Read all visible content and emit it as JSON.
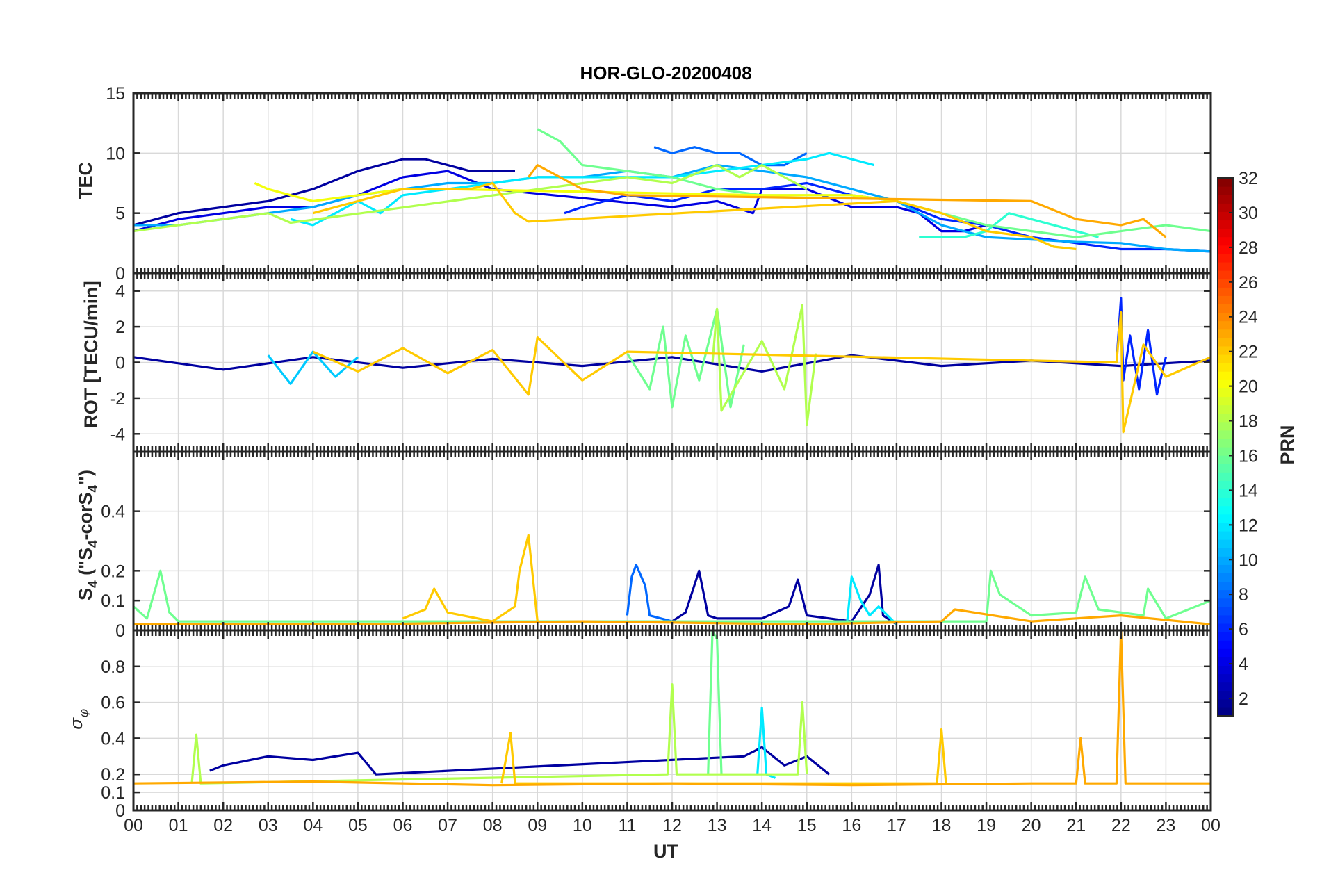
{
  "chart_data": {
    "type": "line",
    "title": "HOR-GLO-20200408",
    "xlabel": "UT",
    "x_ticks": [
      "00",
      "01",
      "02",
      "03",
      "04",
      "05",
      "06",
      "07",
      "08",
      "09",
      "10",
      "11",
      "12",
      "13",
      "14",
      "15",
      "16",
      "17",
      "18",
      "19",
      "20",
      "21",
      "22",
      "23",
      "00"
    ],
    "xlim": [
      0,
      24
    ],
    "grid": true,
    "panels": [
      {
        "id": "tec",
        "ylabel": "TEC",
        "ylim": [
          0,
          15
        ],
        "y_ticks": [
          0,
          5,
          10,
          15
        ],
        "series": [
          {
            "name": "PRN 2",
            "prn": 2,
            "x": [
              0,
              0.5,
              1,
              2,
              3,
              4,
              5,
              5.5,
              6,
              6.5,
              7,
              7.5,
              8,
              8.5
            ],
            "y": [
              4,
              4.5,
              5,
              5.5,
              6,
              7,
              8.5,
              9,
              9.5,
              9.5,
              9,
              8.5,
              8.5,
              8.5
            ]
          },
          {
            "name": "PRN 4",
            "prn": 4,
            "x": [
              0,
              1,
              2,
              3,
              4,
              5,
              6,
              7,
              8,
              12,
              13,
              13.8,
              14,
              15,
              16,
              17,
              17.5,
              18,
              18.5,
              19
            ],
            "y": [
              3.5,
              4.5,
              5,
              5.5,
              5.5,
              6.5,
              8,
              8.5,
              7,
              5.5,
              6,
              5,
              7,
              7,
              5.5,
              5.5,
              5,
              3.5,
              3.5,
              4
            ]
          },
          {
            "name": "PRN 6",
            "prn": 6,
            "x": [
              9.6,
              10,
              11,
              12,
              13,
              14,
              15,
              16,
              17,
              18,
              19,
              20,
              21,
              22,
              23,
              24
            ],
            "y": [
              5,
              5.5,
              6.5,
              6,
              7,
              7,
              7.5,
              6.5,
              6,
              4.5,
              4,
              3,
              2.5,
              2,
              2,
              1.8
            ]
          },
          {
            "name": "PRN 8",
            "prn": 8,
            "x": [
              11.6,
              12,
              12.5,
              13,
              13.5,
              14,
              14.5,
              15
            ],
            "y": [
              10.5,
              10,
              10.5,
              10,
              10,
              9,
              9,
              10
            ]
          },
          {
            "name": "PRN 10",
            "prn": 10,
            "x": [
              0,
              1,
              2,
              3,
              4,
              4.5,
              5,
              6,
              7,
              8,
              9,
              10,
              11,
              12,
              13,
              14,
              15,
              16,
              17,
              18,
              19,
              20,
              21,
              22,
              23,
              24
            ],
            "y": [
              4,
              4,
              4.5,
              5,
              5.5,
              6,
              6.5,
              7,
              7.5,
              7.5,
              8,
              8,
              8.5,
              8,
              9,
              8.5,
              8,
              7,
              6,
              4,
              3,
              2.8,
              2.6,
              2.5,
              2,
              1.8
            ]
          },
          {
            "name": "PRN 12",
            "prn": 12,
            "x": [
              3.5,
              4,
              4.5,
              5,
              5.5,
              6,
              7,
              8,
              9,
              11,
              12,
              13,
              14,
              15,
              15.5,
              16,
              16.5
            ],
            "y": [
              4.5,
              4,
              5,
              6,
              5,
              6.5,
              7,
              7.5,
              8,
              8,
              8,
              8.5,
              9,
              9.5,
              10,
              9.5,
              9
            ]
          },
          {
            "name": "PRN 14",
            "prn": 14,
            "x": [
              17.5,
              18,
              18.5,
              19,
              19.5,
              20,
              20.5,
              21,
              21.5
            ],
            "y": [
              3,
              3,
              3,
              3.5,
              5,
              4.5,
              4,
              3.5,
              3
            ]
          },
          {
            "name": "PRN 16",
            "prn": 16,
            "x": [
              9,
              9.5,
              10,
              11,
              12,
              12.5,
              13,
              14,
              15,
              16,
              17,
              18,
              19,
              20,
              21,
              22,
              23,
              24
            ],
            "y": [
              12,
              11,
              9,
              8.5,
              8,
              7.5,
              7,
              6.5,
              6.5,
              6.5,
              6,
              5,
              4,
              3.5,
              3,
              3.5,
              4,
              3.5
            ]
          },
          {
            "name": "PRN 18",
            "prn": 18,
            "x": [
              0,
              1,
              2,
              3,
              3.5,
              11,
              12,
              13,
              13.5,
              14,
              14.5,
              15
            ],
            "y": [
              3.5,
              4,
              4.5,
              5,
              4.2,
              8,
              7.5,
              9,
              8,
              9,
              8,
              7
            ]
          },
          {
            "name": "PRN 20",
            "prn": 20,
            "x": [
              2.7,
              3,
              4,
              5,
              6,
              7,
              14,
              15,
              15.5,
              16,
              17,
              17.5
            ],
            "y": [
              7.5,
              7,
              6,
              6.5,
              7,
              7,
              6.5,
              6.5,
              6.5,
              6.5,
              6,
              5.5
            ]
          },
          {
            "name": "PRN 22",
            "prn": 22,
            "x": [
              4,
              5,
              6,
              7,
              7.5,
              8,
              8.5,
              8.8,
              17,
              18,
              19,
              20,
              20.5,
              21
            ],
            "y": [
              5,
              6,
              7,
              7,
              7,
              7.5,
              5,
              4.3,
              6,
              5,
              3.5,
              3,
              2.2,
              2
            ]
          },
          {
            "name": "PRN 23",
            "prn": 23,
            "x": [
              8.8,
              9,
              10,
              11,
              20,
              21,
              22,
              22.5,
              23
            ],
            "y": [
              8,
              9,
              7,
              6.5,
              6,
              4.5,
              4,
              4.5,
              3
            ]
          }
        ]
      },
      {
        "id": "rot",
        "ylabel": "ROT [TECU/min]",
        "ylim": [
          -5,
          5
        ],
        "y_ticks": [
          -4,
          -2,
          0,
          2,
          4
        ],
        "series": [
          {
            "name": "PRN 2",
            "prn": 2,
            "x": [
              0,
              2,
              4,
              6,
              8,
              10,
              12,
              14,
              16,
              18,
              20,
              22,
              24
            ],
            "y": [
              0.3,
              -0.4,
              0.3,
              -0.3,
              0.2,
              -0.2,
              0.3,
              -0.5,
              0.4,
              -0.2,
              0.1,
              -0.2,
              0.1
            ]
          },
          {
            "name": "PRN 6",
            "prn": 6,
            "x": [
              21.9,
              22,
              22.05,
              22.2,
              22.4,
              22.6,
              22.8,
              23
            ],
            "y": [
              0,
              3.6,
              -1,
              1.5,
              -1.5,
              1.8,
              -1.8,
              0.3
            ]
          },
          {
            "name": "PRN 11",
            "prn": 11,
            "x": [
              3,
              3.5,
              4,
              4.5,
              5
            ],
            "y": [
              0.4,
              -1.2,
              0.6,
              -0.8,
              0.3
            ]
          },
          {
            "name": "PRN 16",
            "prn": 16,
            "x": [
              11,
              11.5,
              11.8,
              12,
              12.3,
              12.6,
              13,
              13.3,
              13.6
            ],
            "y": [
              0.5,
              -1.5,
              2,
              -2.5,
              1.5,
              -1,
              3,
              -2.5,
              1
            ]
          },
          {
            "name": "PRN 18",
            "prn": 18,
            "x": [
              12.9,
              13,
              13.1,
              14,
              14.5,
              14.9,
              15,
              15.2
            ],
            "y": [
              0,
              3,
              -2.7,
              1.2,
              -1.5,
              3.2,
              -3.5,
              0.5
            ]
          },
          {
            "name": "PRN 22",
            "prn": 22,
            "x": [
              4,
              5,
              6,
              7,
              8,
              8.8,
              9,
              10,
              11,
              21.9,
              22,
              22.05,
              22.5,
              23,
              24
            ],
            "y": [
              0.6,
              -0.5,
              0.8,
              -0.6,
              0.7,
              -1.8,
              1.4,
              -1,
              0.6,
              0,
              2.8,
              -3.9,
              1,
              -0.8,
              0.3
            ]
          }
        ]
      },
      {
        "id": "s4",
        "ylabel": "S4 (\"S4-corS4\")",
        "ylim": [
          0,
          0.6
        ],
        "y_ticks": [
          0,
          0.1,
          0.2,
          0.4
        ],
        "series": [
          {
            "name": "PRN 2",
            "prn": 2,
            "x": [
              12,
              12.3,
              12.6,
              12.8,
              13,
              14,
              14.6,
              14.8,
              15,
              16,
              16.4,
              16.6,
              16.7,
              17
            ],
            "y": [
              0.03,
              0.06,
              0.2,
              0.05,
              0.04,
              0.04,
              0.08,
              0.17,
              0.05,
              0.03,
              0.12,
              0.22,
              0.05,
              0.02
            ]
          },
          {
            "name": "PRN 8",
            "prn": 8,
            "x": [
              11,
              11.1,
              11.2,
              11.4,
              11.5,
              12
            ],
            "y": [
              0.05,
              0.18,
              0.22,
              0.15,
              0.05,
              0.03
            ]
          },
          {
            "name": "PRN 12",
            "prn": 12,
            "x": [
              15.9,
              16,
              16.2,
              16.4,
              16.6,
              17
            ],
            "y": [
              0.03,
              0.18,
              0.1,
              0.05,
              0.08,
              0.02
            ]
          },
          {
            "name": "PRN 16",
            "prn": 16,
            "x": [
              0,
              0.3,
              0.6,
              0.8,
              1,
              19,
              19.1,
              19.3,
              20,
              21,
              21.2,
              21.5,
              22.5,
              22.6,
              23,
              24
            ],
            "y": [
              0.08,
              0.04,
              0.2,
              0.06,
              0.03,
              0.03,
              0.2,
              0.12,
              0.05,
              0.06,
              0.18,
              0.07,
              0.05,
              0.14,
              0.04,
              0.1
            ]
          },
          {
            "name": "PRN 22",
            "prn": 22,
            "x": [
              6,
              6.5,
              6.7,
              7,
              8,
              8.5,
              8.6,
              8.8,
              9
            ],
            "y": [
              0.04,
              0.07,
              0.14,
              0.06,
              0.03,
              0.08,
              0.2,
              0.32,
              0.03
            ]
          },
          {
            "name": "PRN 23",
            "prn": 23,
            "x": [
              0,
              5,
              10,
              15,
              18,
              18.3,
              20,
              22,
              24
            ],
            "y": [
              0.02,
              0.02,
              0.03,
              0.02,
              0.03,
              0.07,
              0.03,
              0.05,
              0.02
            ]
          }
        ]
      },
      {
        "id": "sigma",
        "ylabel": "σφ",
        "ylim": [
          0,
          1
        ],
        "y_ticks": [
          0,
          0.1,
          0.2,
          0.4,
          0.6,
          0.8
        ],
        "series": [
          {
            "name": "PRN 2",
            "prn": 2,
            "x": [
              1.7,
              2,
              3,
              4,
              5,
              5.4,
              13.6,
              14,
              14.5,
              15,
              15.5
            ],
            "y": [
              0.22,
              0.25,
              0.3,
              0.28,
              0.32,
              0.2,
              0.3,
              0.35,
              0.25,
              0.3,
              0.2
            ]
          },
          {
            "name": "PRN 12",
            "prn": 12,
            "x": [
              13.9,
              14,
              14.1,
              14.3
            ],
            "y": [
              0.2,
              0.57,
              0.2,
              0.18
            ]
          },
          {
            "name": "PRN 16",
            "prn": 16,
            "x": [
              12.8,
              12.9,
              13,
              13.1
            ],
            "y": [
              0.2,
              1,
              0.95,
              0.2
            ]
          },
          {
            "name": "PRN 18",
            "prn": 18,
            "x": [
              1.3,
              1.4,
              1.5,
              11.9,
              12,
              12.1,
              14.8,
              14.9,
              15
            ],
            "y": [
              0.15,
              0.42,
              0.15,
              0.2,
              0.7,
              0.2,
              0.2,
              0.6,
              0.2
            ]
          },
          {
            "name": "PRN 22",
            "prn": 22,
            "x": [
              8.2,
              8.4,
              8.5,
              17.9,
              18,
              18.1
            ],
            "y": [
              0.15,
              0.43,
              0.15,
              0.15,
              0.45,
              0.15
            ]
          },
          {
            "name": "PRN 23",
            "prn": 23,
            "x": [
              0,
              4,
              8,
              12,
              16,
              20,
              21,
              21.1,
              21.2,
              21.9,
              22,
              22.1,
              24
            ],
            "y": [
              0.15,
              0.16,
              0.14,
              0.15,
              0.14,
              0.15,
              0.15,
              0.4,
              0.15,
              0.15,
              1,
              0.15,
              0.15
            ]
          }
        ]
      }
    ],
    "colorbar": {
      "label": "PRN",
      "range": [
        1,
        32
      ],
      "ticks": [
        2,
        4,
        6,
        8,
        10,
        12,
        14,
        16,
        18,
        20,
        22,
        24,
        26,
        28,
        30,
        32
      ],
      "colormap": "jet"
    }
  }
}
